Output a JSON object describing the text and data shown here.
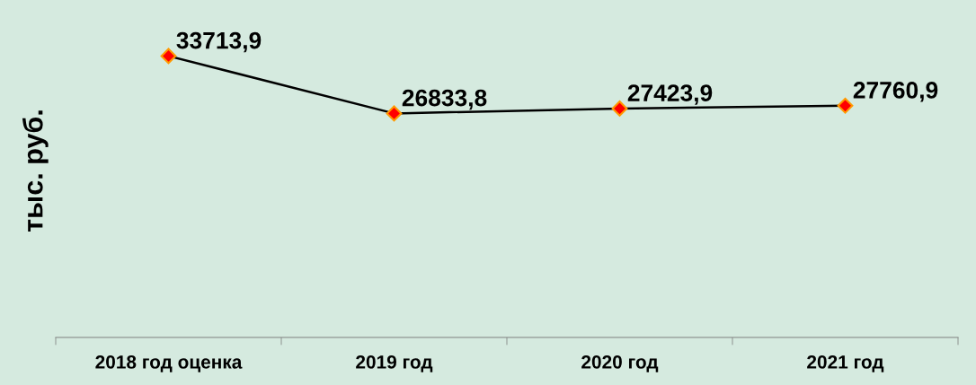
{
  "chart_data": {
    "type": "line",
    "ylabel": "тыс. руб.",
    "categories": [
      "2018 год оценка",
      "2019 год",
      "2020 год",
      "2021 год"
    ],
    "series": [
      {
        "color": "#000000",
        "values": [
          33713.9,
          26833.8,
          27423.9,
          27760.9
        ],
        "value_labels": [
          "33713,9",
          "26833,8",
          "27423,9",
          "27760,9"
        ]
      }
    ],
    "tick_labels": "x",
    "marker": "diamond",
    "line_style": "solid"
  }
}
